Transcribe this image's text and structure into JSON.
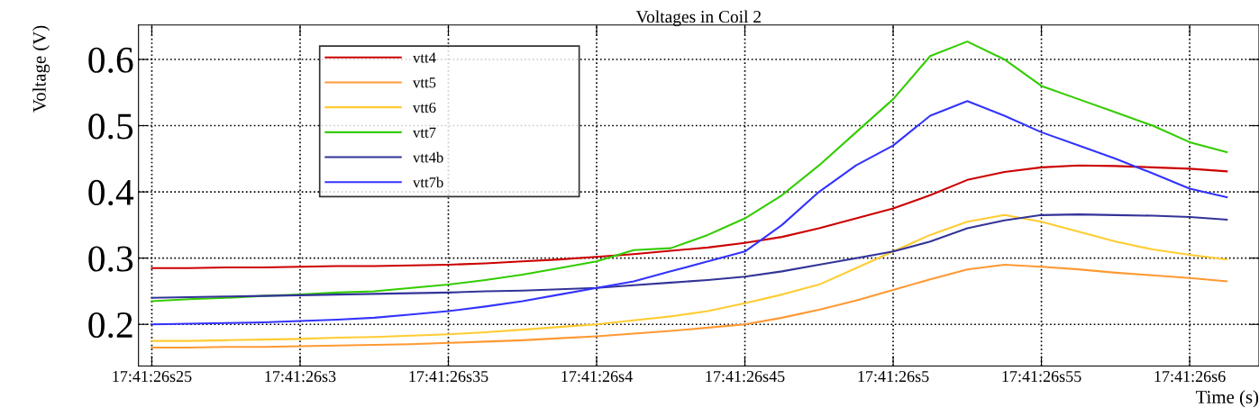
{
  "chart_data": {
    "type": "line",
    "title": "Voltages in Coil 2",
    "xlabel": "Time (s)",
    "ylabel": "Voltage (V)",
    "categories": [
      "17:41:26s25",
      null,
      null,
      null,
      "17:41:26s3",
      null,
      null,
      null,
      "17:41:26s35",
      null,
      null,
      null,
      "17:41:26s4",
      null,
      null,
      null,
      "17:41:26s45",
      null,
      null,
      null,
      "17:41:26s5",
      null,
      null,
      null,
      "17:41:26s55",
      null,
      null,
      null,
      "17:41:26s6",
      null
    ],
    "series": [
      {
        "name": "vtt4",
        "color": "#cc0000",
        "values": [
          0.285,
          0.285,
          0.286,
          0.286,
          0.287,
          0.288,
          0.288,
          0.289,
          0.29,
          0.292,
          0.295,
          0.298,
          0.302,
          0.306,
          0.311,
          0.316,
          0.323,
          0.332,
          0.345,
          0.36,
          0.375,
          0.395,
          0.418,
          0.43,
          0.437,
          0.44,
          0.439,
          0.437,
          0.435,
          0.431
        ]
      },
      {
        "name": "vtt5",
        "color": "#ff9933",
        "values": [
          0.165,
          0.165,
          0.166,
          0.166,
          0.167,
          0.168,
          0.169,
          0.17,
          0.172,
          0.174,
          0.176,
          0.179,
          0.182,
          0.186,
          0.19,
          0.195,
          0.2,
          0.21,
          0.222,
          0.236,
          0.252,
          0.268,
          0.283,
          0.29,
          0.287,
          0.283,
          0.278,
          0.274,
          0.27,
          0.265
        ]
      },
      {
        "name": "vtt6",
        "color": "#ffcc33",
        "values": [
          0.175,
          0.175,
          0.176,
          0.177,
          0.178,
          0.18,
          0.181,
          0.183,
          0.185,
          0.188,
          0.192,
          0.196,
          0.2,
          0.206,
          0.212,
          0.22,
          0.232,
          0.245,
          0.26,
          0.285,
          0.31,
          0.335,
          0.355,
          0.365,
          0.355,
          0.34,
          0.325,
          0.313,
          0.305,
          0.298
        ]
      },
      {
        "name": "vtt7",
        "color": "#33cc00",
        "values": [
          0.235,
          0.238,
          0.24,
          0.243,
          0.245,
          0.248,
          0.25,
          0.255,
          0.26,
          0.267,
          0.275,
          0.285,
          0.295,
          0.312,
          0.315,
          0.335,
          0.36,
          0.395,
          0.44,
          0.49,
          0.54,
          0.605,
          0.627,
          0.6,
          0.56,
          0.54,
          0.52,
          0.5,
          0.475,
          0.46
        ]
      },
      {
        "name": "vtt4b",
        "color": "#333399",
        "values": [
          0.24,
          0.241,
          0.242,
          0.243,
          0.244,
          0.245,
          0.246,
          0.247,
          0.248,
          0.25,
          0.251,
          0.253,
          0.255,
          0.259,
          0.263,
          0.267,
          0.272,
          0.28,
          0.29,
          0.3,
          0.31,
          0.325,
          0.345,
          0.357,
          0.365,
          0.366,
          0.365,
          0.364,
          0.362,
          0.358
        ]
      },
      {
        "name": "vtt7b",
        "color": "#3333ff",
        "values": [
          0.2,
          0.201,
          0.202,
          0.203,
          0.205,
          0.207,
          0.21,
          0.215,
          0.22,
          0.227,
          0.235,
          0.245,
          0.255,
          0.265,
          0.28,
          0.295,
          0.31,
          0.35,
          0.4,
          0.44,
          0.47,
          0.515,
          0.537,
          0.515,
          0.49,
          0.47,
          0.45,
          0.428,
          0.405,
          0.392
        ]
      }
    ],
    "ylim": [
      0.137,
      0.652
    ],
    "yticks": [
      0.2,
      0.3,
      0.4,
      0.5,
      0.6
    ],
    "grid": true,
    "legend": "top left",
    "line_style": "solid"
  }
}
